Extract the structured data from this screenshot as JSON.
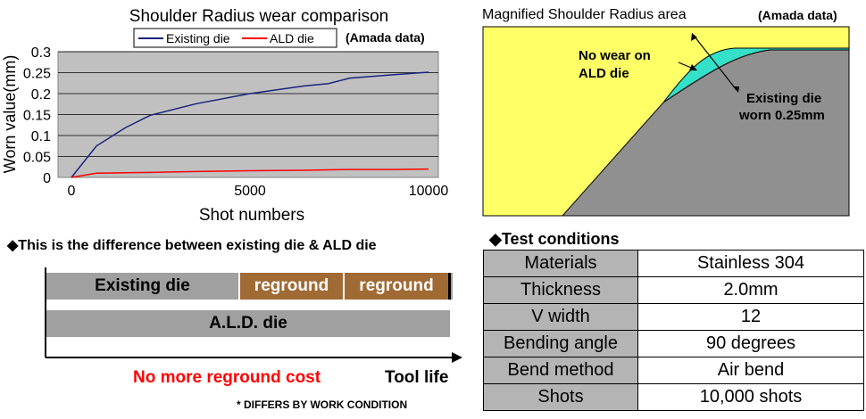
{
  "chart_data": {
    "type": "line",
    "title": "Shoulder Radius wear comparison",
    "xlabel": "Shot numbers",
    "ylabel": "Worn value(mm)",
    "xlim": [
      0,
      10000
    ],
    "ylim": [
      0,
      0.3
    ],
    "xticks": [
      "0",
      "5000",
      "10000"
    ],
    "yticks": [
      "0",
      "0.05",
      "0.1",
      "0.15",
      "0.2",
      "0.25",
      "0.3"
    ],
    "grid": true,
    "legend_position": "top",
    "note": "(Amada data)",
    "series": [
      {
        "name": "Existing die",
        "color": "#1a237e",
        "x": [
          0,
          700,
          1500,
          2200,
          3500,
          5000,
          6500,
          7200,
          7800,
          9000,
          10000
        ],
        "y": [
          0,
          0.075,
          0.118,
          0.148,
          0.176,
          0.2,
          0.218,
          0.224,
          0.237,
          0.245,
          0.251
        ]
      },
      {
        "name": "ALD  die",
        "color": "#ff0000",
        "x": [
          0,
          700,
          1500,
          2200,
          3500,
          5000,
          6500,
          7800,
          9000,
          10000
        ],
        "y": [
          0,
          0.01,
          0.011,
          0.012,
          0.014,
          0.016,
          0.017,
          0.019,
          0.019,
          0.02
        ]
      }
    ]
  },
  "diagram": {
    "title": "Magnified Shoulder Radius  area",
    "note": "(Amada data)",
    "label_no_wear_line1": "No wear on",
    "label_no_wear_line2": "ALD die",
    "label_worn_line1": "Existing die",
    "label_worn_line2": "worn 0.25mm",
    "colors": {
      "background": "#ffff66",
      "die": "#909090",
      "wear": "#33e0c8"
    }
  },
  "difference": {
    "heading": "◆This is the difference between existing die & ALD die",
    "existing_label": "Existing die",
    "reground_1": "reground",
    "reground_2": "reground",
    "ald_label": "A.L.D. die",
    "no_cost": "No more reground cost",
    "tool_life": "Tool life",
    "footnote": "* DIFFERS BY WORK CONDITION",
    "colors": {
      "bar": "#a0a0a0",
      "reground": "#a06a35",
      "no_cost": "#ff0000"
    }
  },
  "conditions": {
    "heading": "◆Test conditions",
    "rows": [
      {
        "label": "Materials",
        "value": "Stainless 304"
      },
      {
        "label": "Thickness",
        "value": "2.0mm"
      },
      {
        "label": "V width",
        "value": "12"
      },
      {
        "label": "Bending angle",
        "value": "90 degrees"
      },
      {
        "label": "Bend method",
        "value": "Air bend"
      },
      {
        "label": "Shots",
        "value": "10,000 shots"
      }
    ]
  }
}
